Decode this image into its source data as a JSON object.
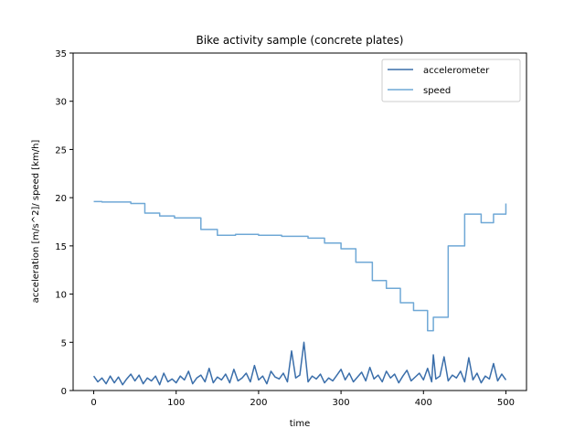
{
  "chart_data": {
    "type": "line",
    "title": "Bike activity sample (concrete plates)",
    "xlabel": "time",
    "ylabel": "acceleration [m/s^2]/ speed [km/h]",
    "xlim": [
      -25,
      525
    ],
    "ylim": [
      0,
      35
    ],
    "xticks": [
      0,
      100,
      200,
      300,
      400,
      500
    ],
    "yticks": [
      0,
      5,
      10,
      15,
      20,
      25,
      30,
      35
    ],
    "grid": false,
    "legend_position": "top-right",
    "series": [
      {
        "name": "accelerometer",
        "color": "#3a6eaa",
        "x": [
          0,
          5,
          10,
          15,
          20,
          25,
          30,
          35,
          40,
          45,
          50,
          55,
          60,
          65,
          70,
          75,
          80,
          85,
          90,
          95,
          100,
          105,
          110,
          115,
          120,
          125,
          130,
          135,
          140,
          145,
          150,
          155,
          160,
          165,
          170,
          175,
          180,
          185,
          190,
          195,
          200,
          205,
          210,
          215,
          220,
          225,
          230,
          235,
          240,
          245,
          250,
          255,
          260,
          265,
          270,
          275,
          280,
          285,
          290,
          295,
          300,
          305,
          310,
          315,
          320,
          325,
          330,
          335,
          340,
          345,
          350,
          355,
          360,
          365,
          370,
          375,
          380,
          385,
          390,
          395,
          400,
          405,
          410,
          412,
          415,
          420,
          425,
          430,
          435,
          440,
          445,
          450,
          455,
          460,
          465,
          470,
          475,
          480,
          485,
          490,
          495,
          500
        ],
        "values": [
          1.5,
          0.9,
          1.3,
          0.7,
          1.5,
          0.8,
          1.4,
          0.6,
          1.2,
          1.7,
          1.0,
          1.6,
          0.7,
          1.3,
          1.0,
          1.5,
          0.6,
          1.8,
          0.9,
          1.2,
          0.8,
          1.5,
          1.1,
          2.0,
          0.7,
          1.3,
          1.6,
          0.9,
          2.3,
          0.8,
          1.4,
          1.1,
          1.7,
          0.8,
          2.2,
          1.0,
          1.3,
          1.8,
          0.9,
          2.6,
          1.1,
          1.5,
          0.7,
          2.0,
          1.4,
          1.2,
          1.8,
          0.9,
          4.1,
          1.3,
          1.6,
          5.0,
          0.9,
          1.5,
          1.2,
          1.7,
          0.8,
          1.3,
          1.0,
          1.6,
          2.2,
          1.1,
          1.8,
          0.9,
          1.4,
          1.9,
          1.0,
          2.4,
          1.2,
          1.6,
          0.9,
          2.0,
          1.3,
          1.7,
          0.8,
          1.5,
          2.1,
          1.0,
          1.4,
          1.8,
          1.1,
          2.3,
          0.9,
          3.7,
          1.2,
          1.5,
          3.5,
          1.0,
          1.6,
          1.3,
          2.0,
          0.9,
          3.4,
          1.1,
          1.8,
          0.8,
          1.5,
          1.2,
          2.8,
          1.0,
          1.7,
          1.1
        ]
      },
      {
        "name": "speed",
        "color": "#6fa8d6",
        "x": [
          0,
          10,
          45,
          62,
          80,
          98,
          130,
          150,
          172,
          200,
          228,
          260,
          280,
          300,
          318,
          338,
          355,
          372,
          388,
          405,
          412,
          430,
          450,
          470,
          485,
          500
        ],
        "values": [
          19.6,
          19.55,
          19.4,
          18.4,
          18.1,
          17.9,
          16.7,
          16.1,
          16.2,
          16.1,
          16.0,
          15.8,
          15.3,
          14.7,
          13.3,
          11.4,
          10.6,
          9.1,
          8.3,
          6.2,
          7.6,
          15.0,
          18.3,
          17.4,
          18.3,
          19.4
        ]
      }
    ]
  }
}
